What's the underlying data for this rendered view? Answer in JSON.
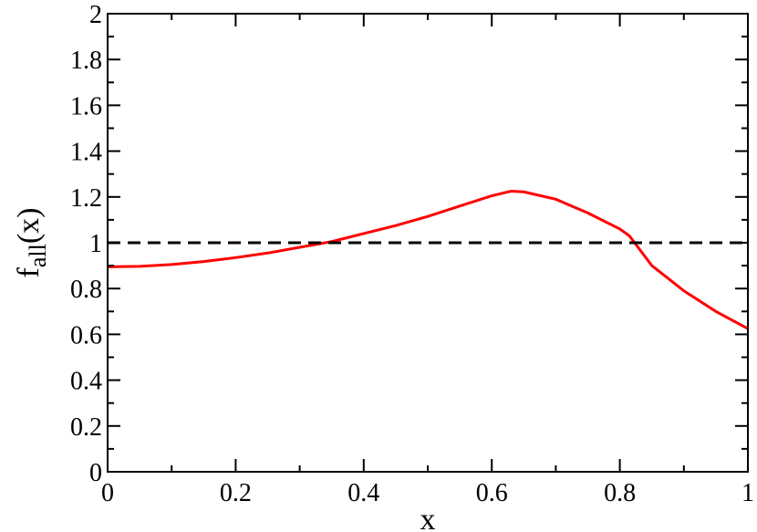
{
  "chart_data": {
    "type": "line",
    "xlabel": "x",
    "ylabel": [
      "f",
      "all",
      "(x)"
    ],
    "xlim": [
      0,
      1
    ],
    "ylim": [
      0,
      2
    ],
    "xticks": [
      0,
      0.2,
      0.4,
      0.6,
      0.8,
      1
    ],
    "yticks": [
      0,
      0.2,
      0.4,
      0.6,
      0.8,
      1,
      1.2,
      1.4,
      1.6,
      1.8,
      2
    ],
    "xminorticks": [
      0.1,
      0.3,
      0.5,
      0.7,
      0.9
    ],
    "yminorticks": [
      0.1,
      0.3,
      0.5,
      0.7,
      0.9,
      1.1,
      1.3,
      1.5,
      1.7,
      1.9
    ],
    "series": [
      {
        "color": "#ff0000",
        "dash": "solid",
        "x": [
          0,
          0.05,
          0.1,
          0.15,
          0.2,
          0.25,
          0.3,
          0.35,
          0.4,
          0.45,
          0.5,
          0.55,
          0.6,
          0.63,
          0.65,
          0.7,
          0.75,
          0.8,
          0.815,
          0.85,
          0.9,
          0.95,
          1
        ],
        "values": [
          0.895,
          0.897,
          0.905,
          0.918,
          0.935,
          0.955,
          0.98,
          1.005,
          1.04,
          1.075,
          1.115,
          1.16,
          1.205,
          1.225,
          1.222,
          1.19,
          1.13,
          1.06,
          1.03,
          0.9,
          0.79,
          0.7,
          0.625
        ]
      },
      {
        "color": "#000000",
        "dash": "dashed",
        "x": [
          0,
          1
        ],
        "values": [
          1,
          1
        ]
      }
    ]
  }
}
